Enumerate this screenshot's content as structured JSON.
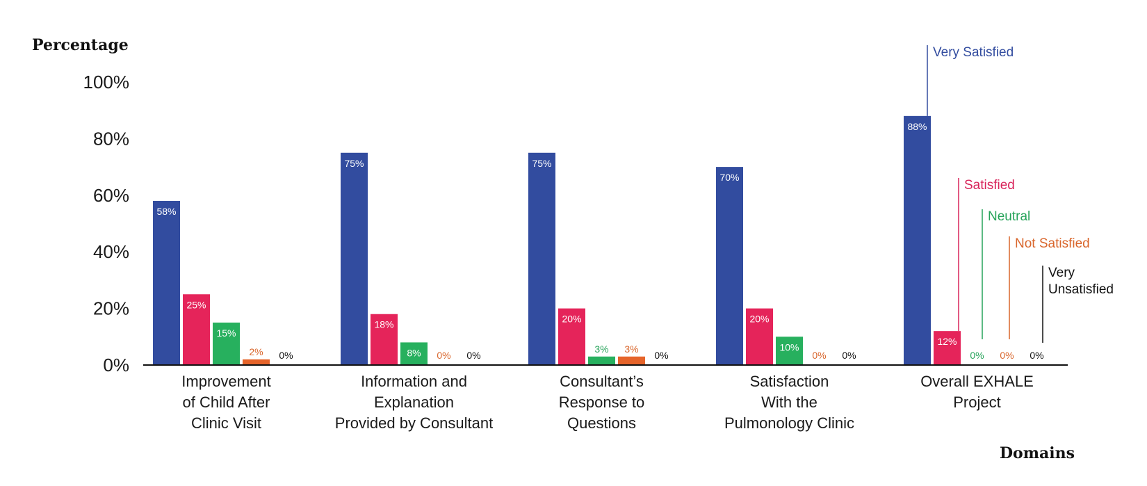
{
  "chart_data": {
    "type": "bar",
    "ylabel": "Percentage",
    "xlabel": "Domains",
    "ylim": [
      0,
      100
    ],
    "yticks": [
      "0%",
      "20%",
      "40%",
      "60%",
      "80%",
      "100%"
    ],
    "categories": [
      [
        "Improvement",
        "of Child After",
        "Clinic Visit"
      ],
      [
        "Information and",
        "Explanation",
        "Provided by Consultant"
      ],
      [
        "Consultant’s",
        "Response to",
        "Questions"
      ],
      [
        "Satisfaction",
        "With the",
        "Pulmonology Clinic"
      ],
      [
        "Overall EXHALE",
        "Project"
      ]
    ],
    "series": [
      {
        "name": "Very Satisfied",
        "color": "#324c9f",
        "values": [
          58,
          75,
          75,
          70,
          88
        ],
        "labels": [
          "58%",
          "75%",
          "75%",
          "70%",
          "88%"
        ]
      },
      {
        "name": "Satisfied",
        "color": "#e5245a",
        "values": [
          25,
          18,
          20,
          20,
          12
        ],
        "labels": [
          "25%",
          "18%",
          "20%",
          "20%",
          "12%"
        ]
      },
      {
        "name": "Neutral",
        "color": "#27b05e",
        "values": [
          15,
          8,
          3,
          10,
          0
        ],
        "labels": [
          "15%",
          "8%",
          "3%",
          "10%",
          "0%"
        ]
      },
      {
        "name": "Not Satisfied",
        "color": "#e6642a",
        "values": [
          2,
          0,
          3,
          0,
          0
        ],
        "labels": [
          "2%",
          "0%",
          "3%",
          "0%",
          "0%"
        ]
      },
      {
        "name": "Very Unsatisfied",
        "color": "#111111",
        "values": [
          0,
          0,
          0,
          0,
          0
        ],
        "labels": [
          "0%",
          "0%",
          "0%",
          "0%",
          "0%"
        ]
      }
    ],
    "legend_placement": "annotations above last category",
    "legend": [
      {
        "name": "Very Satisfied",
        "lines": [
          "Very Satisfied"
        ],
        "color": "#324c9f"
      },
      {
        "name": "Satisfied",
        "lines": [
          "Satisfied"
        ],
        "color": "#d8245a"
      },
      {
        "name": "Neutral",
        "lines": [
          "Neutral"
        ],
        "color": "#27a35a"
      },
      {
        "name": "Not Satisfied",
        "lines": [
          "Not Satisfied"
        ],
        "color": "#d9662c"
      },
      {
        "name": "Very Unsatisfied",
        "lines": [
          "Very",
          "Unsatisfied"
        ],
        "color": "#111111"
      }
    ]
  }
}
